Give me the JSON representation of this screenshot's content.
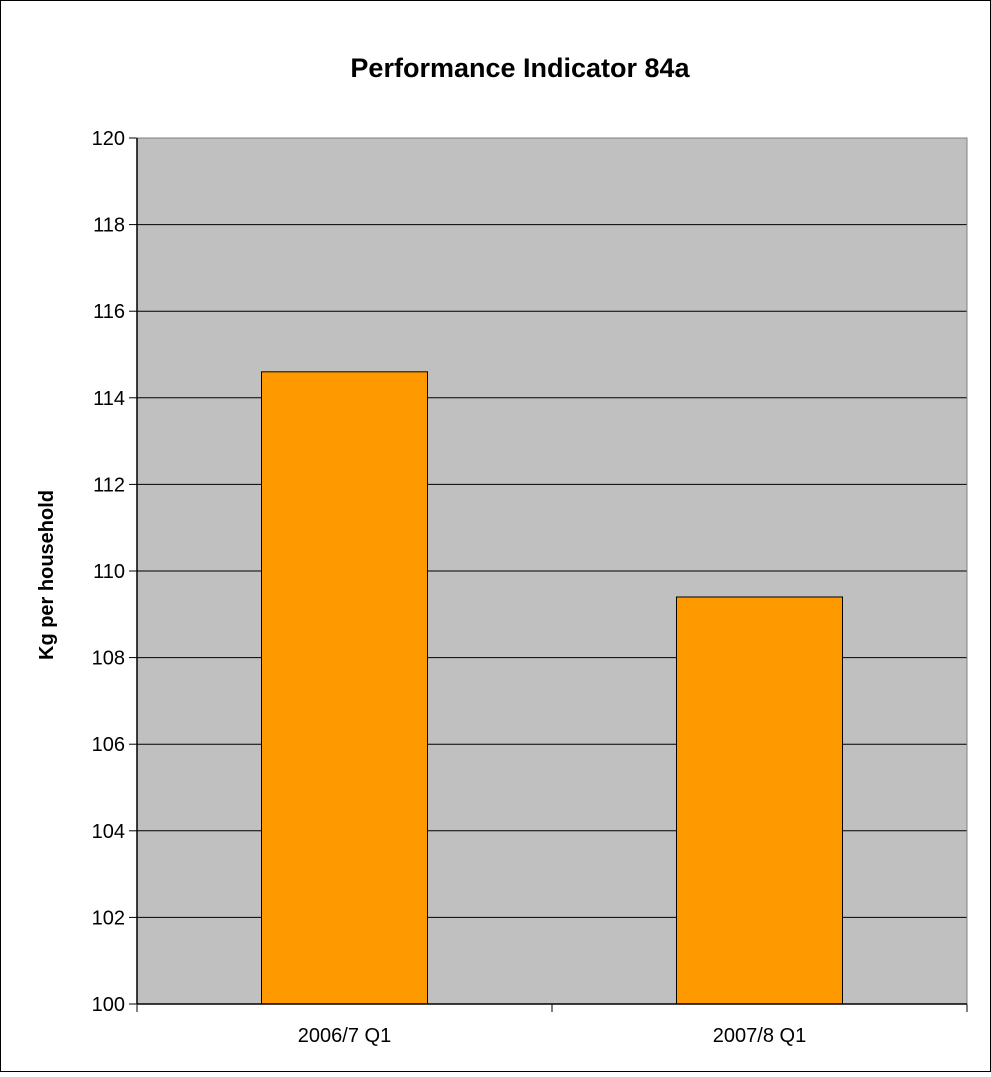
{
  "chart_data": {
    "type": "bar",
    "title": "Performance Indicator 84a",
    "xlabel": "",
    "ylabel": "Kg per household",
    "categories": [
      "2006/7 Q1",
      "2007/8 Q1"
    ],
    "values": [
      114.6,
      109.4
    ],
    "ylim": [
      100,
      120
    ],
    "yticks": [
      100,
      102,
      104,
      106,
      108,
      110,
      112,
      114,
      116,
      118,
      120
    ],
    "grid": true,
    "legend": "none",
    "colors": {
      "plot_background": "#c0c0c0",
      "bar_fill": "#ff9900",
      "bar_stroke": "#000000",
      "gridline": "#000000",
      "frame": "#000000"
    }
  }
}
